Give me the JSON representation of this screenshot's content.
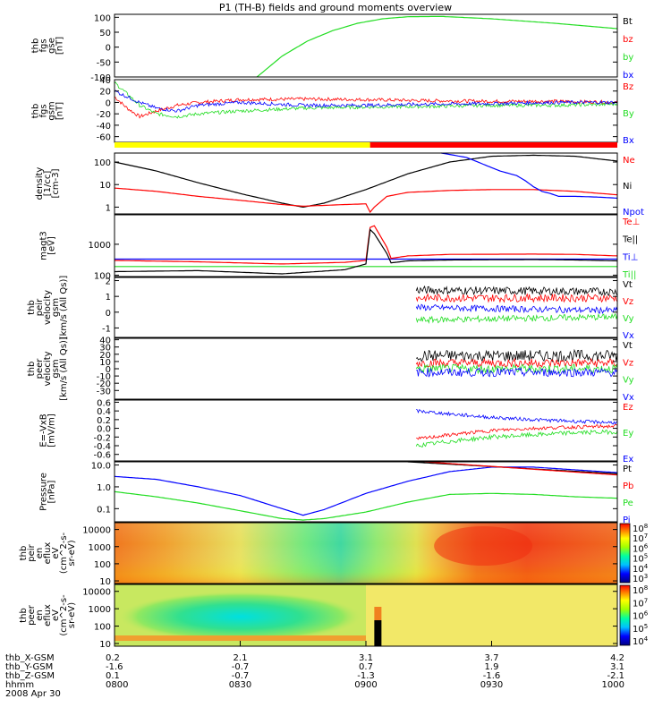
{
  "title": "P1 (TH-B) fields and ground moments overview",
  "date": "2008 Apr 30",
  "colors": {
    "black": "#000000",
    "red": "#ff0000",
    "green": "#22dd22",
    "blue": "#0000ff",
    "yellow": "#ffff00"
  },
  "x_axis": {
    "ticks": [
      0,
      30,
      60,
      90,
      120
    ],
    "rows": [
      {
        "label": "thb_X-GSM",
        "values": [
          "0.2",
          "2.1",
          "3.1",
          "3.7",
          "4.2"
        ]
      },
      {
        "label": "thb_Y-GSM",
        "values": [
          "-1.6",
          "-0.7",
          "0.7",
          "1.9",
          "3.1"
        ]
      },
      {
        "label": "thb_Z-GSM",
        "values": [
          "0.1",
          "-0.7",
          "-1.3",
          "-1.6",
          "-2.1"
        ]
      },
      {
        "label": "hhmm",
        "values": [
          "0800",
          "0830",
          "0900",
          "0930",
          "1000"
        ]
      }
    ]
  },
  "chart_data": [
    {
      "id": "fgs-gse",
      "type": "line",
      "ylabel": [
        "thb",
        "fgs",
        "gse",
        "[nT]"
      ],
      "ylim": [
        -100,
        110
      ],
      "yticks": [
        100,
        50,
        0,
        -50,
        -100
      ],
      "legend": [
        {
          "name": "Bt",
          "color": "black"
        },
        {
          "name": "bz",
          "color": "red"
        },
        {
          "name": "by",
          "color": "green"
        },
        {
          "name": "bx",
          "color": "blue"
        }
      ],
      "series": [
        {
          "name": "by",
          "color": "green",
          "x": [
            34,
            40,
            46,
            52,
            58,
            64,
            70,
            78,
            90,
            105,
            120
          ],
          "y": [
            -100,
            -30,
            20,
            55,
            80,
            95,
            102,
            103,
            95,
            80,
            62
          ]
        }
      ]
    },
    {
      "id": "fgs-gsm",
      "type": "line",
      "ylabel": [
        "thb",
        "fgs",
        "gsm",
        "[nT]"
      ],
      "ylim": [
        -70,
        40
      ],
      "yticks": [
        40,
        20,
        0,
        -20,
        -40,
        -60
      ],
      "legend": [
        {
          "name": "Bz",
          "color": "red"
        },
        {
          "name": "By",
          "color": "green"
        },
        {
          "name": "Bx",
          "color": "blue"
        }
      ],
      "series": [
        {
          "name": "Bz",
          "color": "red",
          "noise": 3,
          "x": [
            0,
            3,
            6,
            10,
            15,
            20,
            30,
            45,
            60,
            75,
            90,
            105,
            120
          ],
          "y": [
            10,
            -10,
            -25,
            -15,
            -5,
            0,
            5,
            6,
            5,
            3,
            2,
            2,
            0
          ]
        },
        {
          "name": "By",
          "color": "green",
          "noise": 3,
          "x": [
            0,
            3,
            6,
            10,
            15,
            20,
            30,
            45,
            60,
            75,
            90,
            105,
            120
          ],
          "y": [
            35,
            15,
            -5,
            -20,
            -25,
            -20,
            -15,
            -10,
            -8,
            -7,
            -5,
            -5,
            -3
          ]
        },
        {
          "name": "Bx",
          "color": "blue",
          "noise": 3,
          "x": [
            0,
            3,
            6,
            10,
            15,
            20,
            30,
            45,
            60,
            75,
            90,
            105,
            120
          ],
          "y": [
            20,
            10,
            0,
            -10,
            -15,
            -5,
            0,
            -5,
            -5,
            -3,
            -2,
            0,
            0
          ]
        }
      ]
    },
    {
      "id": "state-bar",
      "type": "bar",
      "segments": [
        {
          "x": [
            0,
            61
          ],
          "color": "yellow"
        },
        {
          "x": [
            61,
            120
          ],
          "color": "red"
        }
      ]
    },
    {
      "id": "density",
      "type": "line",
      "ylog": true,
      "ylabel": [
        "density",
        "[1/cc]",
        "[cm-3]"
      ],
      "ylim": [
        0.5,
        250
      ],
      "yticks": [
        100,
        10,
        1
      ],
      "yticklabels": [
        "100",
        "10",
        "1"
      ],
      "legend": [
        {
          "name": "Ne",
          "color": "red"
        },
        {
          "name": "Ni",
          "color": "black"
        },
        {
          "name": "Npot",
          "color": "blue"
        }
      ],
      "series": [
        {
          "name": "Ni",
          "color": "black",
          "x": [
            0,
            10,
            20,
            30,
            40,
            45,
            50,
            60,
            70,
            80,
            90,
            100,
            110,
            120
          ],
          "y": [
            100,
            40,
            12,
            4,
            1.5,
            1,
            1.5,
            6,
            30,
            100,
            180,
            200,
            180,
            110
          ]
        },
        {
          "name": "Ne",
          "color": "red",
          "x": [
            0,
            10,
            20,
            30,
            40,
            45,
            55,
            60,
            61,
            62,
            65,
            70,
            80,
            90,
            100,
            110,
            120
          ],
          "y": [
            7,
            5,
            3,
            2,
            1.3,
            1.1,
            1.3,
            1.4,
            0.6,
            1,
            3,
            4.5,
            5.5,
            6,
            6,
            5,
            3.5
          ]
        },
        {
          "name": "Npot",
          "color": "blue",
          "x": [
            78,
            84,
            88,
            92,
            96,
            98,
            100,
            102,
            104,
            106,
            110,
            115,
            120
          ],
          "y": [
            250,
            160,
            80,
            40,
            25,
            15,
            8,
            5,
            4,
            3,
            3,
            2.8,
            2.5
          ]
        }
      ]
    },
    {
      "id": "magt3",
      "type": "line",
      "ylog": true,
      "ylabel": [
        "magt3",
        "[eV]"
      ],
      "ylim": [
        90,
        9000
      ],
      "yticks": [
        1000,
        100
      ],
      "yticklabels": [
        "1000",
        "100"
      ],
      "legend": [
        {
          "name": "Te⊥",
          "color": "red"
        },
        {
          "name": "Te||",
          "color": "black"
        },
        {
          "name": "Ti⊥",
          "color": "blue"
        },
        {
          "name": "Ti||",
          "color": "green"
        }
      ],
      "series": [
        {
          "name": "Ti⊥",
          "color": "blue",
          "x": [
            0,
            60,
            120
          ],
          "y": [
            330,
            330,
            330
          ]
        },
        {
          "name": "Ti||",
          "color": "green",
          "x": [
            0,
            120
          ],
          "y": [
            190,
            190
          ]
        },
        {
          "name": "Te⊥",
          "color": "red",
          "x": [
            0,
            20,
            40,
            55,
            60,
            61,
            62,
            65,
            66,
            70,
            80,
            100,
            110,
            120
          ],
          "y": [
            300,
            270,
            230,
            260,
            300,
            3500,
            4000,
            800,
            350,
            420,
            470,
            480,
            470,
            420
          ]
        },
        {
          "name": "Te||",
          "color": "black",
          "x": [
            0,
            20,
            40,
            55,
            60,
            61,
            62,
            65,
            66,
            70,
            80,
            100,
            110,
            120
          ],
          "y": [
            130,
            140,
            110,
            150,
            230,
            3000,
            2200,
            500,
            250,
            290,
            310,
            320,
            310,
            290
          ]
        }
      ]
    },
    {
      "id": "peir-velocity",
      "type": "line",
      "ylabel": [
        "thb",
        "peir",
        "velocity",
        "gsm",
        "[km/s (All Qs)]"
      ],
      "ylim": [
        -1.6,
        2.2
      ],
      "yticks": [
        2,
        1,
        0,
        -1
      ],
      "legend": [
        {
          "name": "Vt",
          "color": "black"
        },
        {
          "name": "Vz",
          "color": "red"
        },
        {
          "name": "Vy",
          "color": "green"
        },
        {
          "name": "Vx",
          "color": "blue"
        }
      ],
      "series": [
        {
          "name": "Vt",
          "color": "black",
          "noise": 0.25,
          "x": [
            72,
            120
          ],
          "y": [
            1.4,
            1.3
          ]
        },
        {
          "name": "Vz",
          "color": "red",
          "noise": 0.25,
          "x": [
            72,
            120
          ],
          "y": [
            0.9,
            0.9
          ]
        },
        {
          "name": "Vx",
          "color": "blue",
          "noise": 0.2,
          "x": [
            72,
            120
          ],
          "y": [
            0.3,
            0.1
          ]
        },
        {
          "name": "Vy",
          "color": "green",
          "noise": 0.2,
          "x": [
            72,
            120
          ],
          "y": [
            -0.5,
            -0.3
          ]
        }
      ]
    },
    {
      "id": "peer-velocity",
      "type": "line",
      "ylabel": [
        "thb",
        "peer",
        "velocity",
        "gsm",
        "[km/s (All Qs)]"
      ],
      "ylim": [
        -42,
        42
      ],
      "yticks": [
        40,
        30,
        20,
        10,
        0,
        -10,
        -20,
        -30
      ],
      "legend": [
        {
          "name": "Vt",
          "color": "black"
        },
        {
          "name": "Vz",
          "color": "red"
        },
        {
          "name": "Vy",
          "color": "green"
        },
        {
          "name": "Vx",
          "color": "blue"
        }
      ],
      "series": [
        {
          "name": "Vt",
          "color": "black",
          "noise": 8,
          "x": [
            72,
            120
          ],
          "y": [
            18,
            18
          ]
        },
        {
          "name": "Vz",
          "color": "red",
          "noise": 6,
          "x": [
            72,
            120
          ],
          "y": [
            8,
            8
          ]
        },
        {
          "name": "Vy",
          "color": "green",
          "noise": 6,
          "x": [
            72,
            120
          ],
          "y": [
            0,
            0
          ]
        },
        {
          "name": "Vx",
          "color": "blue",
          "noise": 6,
          "x": [
            72,
            120
          ],
          "y": [
            -5,
            -5
          ]
        }
      ]
    },
    {
      "id": "e-field",
      "type": "line",
      "ylabel": [
        "E=-VxB",
        "[mV/m]"
      ],
      "ylim": [
        -0.75,
        0.65
      ],
      "yticks": [
        0.6,
        0.4,
        0.2,
        0.0,
        -0.2,
        -0.4,
        -0.6
      ],
      "yticklabels": [
        "0.6",
        "0.4",
        "0.2",
        "0.0",
        "-0.2",
        "-0.4",
        "-0.6"
      ],
      "legend": [
        {
          "name": "Ez",
          "color": "red"
        },
        {
          "name": "Ey",
          "color": "green"
        },
        {
          "name": "Ex",
          "color": "blue"
        }
      ],
      "series": [
        {
          "name": "Ex",
          "color": "blue",
          "noise": 0.04,
          "x": [
            72,
            80,
            90,
            100,
            110,
            120
          ],
          "y": [
            0.4,
            0.33,
            0.25,
            0.2,
            0.16,
            0.13
          ]
        },
        {
          "name": "Ez",
          "color": "red",
          "noise": 0.04,
          "x": [
            72,
            80,
            90,
            100,
            110,
            120
          ],
          "y": [
            -0.25,
            -0.15,
            -0.05,
            0.0,
            0.03,
            0.05
          ]
        },
        {
          "name": "Ey",
          "color": "green",
          "noise": 0.05,
          "x": [
            72,
            80,
            90,
            100,
            110,
            120
          ],
          "y": [
            -0.4,
            -0.3,
            -0.2,
            -0.15,
            -0.1,
            -0.08
          ]
        }
      ]
    },
    {
      "id": "pressure",
      "type": "line",
      "ylog": true,
      "ylabel": [
        "Pressure",
        "[nPa]"
      ],
      "ylim": [
        0.025,
        14
      ],
      "yticks": [
        10,
        1,
        0.1
      ],
      "yticklabels": [
        "10.0",
        "1.0",
        "0.1"
      ],
      "legend": [
        {
          "name": "Pt",
          "color": "black"
        },
        {
          "name": "Pb",
          "color": "red"
        },
        {
          "name": "Pe",
          "color": "green"
        },
        {
          "name": "Pi",
          "color": "blue"
        }
      ],
      "series": [
        {
          "name": "Pi",
          "color": "blue",
          "x": [
            0,
            10,
            20,
            30,
            40,
            45,
            50,
            60,
            70,
            80,
            90,
            100,
            110,
            120
          ],
          "y": [
            3,
            2.2,
            1,
            0.4,
            0.1,
            0.05,
            0.09,
            0.5,
            1.8,
            5,
            8,
            8,
            6,
            4.5
          ]
        },
        {
          "name": "Pe",
          "color": "green",
          "x": [
            0,
            10,
            20,
            30,
            40,
            45,
            50,
            60,
            70,
            80,
            90,
            100,
            110,
            120
          ],
          "y": [
            0.6,
            0.35,
            0.18,
            0.08,
            0.035,
            0.03,
            0.035,
            0.07,
            0.2,
            0.45,
            0.5,
            0.45,
            0.35,
            0.3
          ]
        },
        {
          "name": "Pt",
          "color": "black",
          "x": [
            70,
            120
          ],
          "y": [
            14,
            4
          ]
        },
        {
          "name": "Pb",
          "color": "red",
          "x": [
            74,
            120
          ],
          "y": [
            14,
            3.5
          ]
        }
      ]
    },
    {
      "id": "peir-en-eflux",
      "type": "heatmap",
      "ylabel": [
        "thb",
        "peir",
        "en",
        "eflux",
        "eV",
        "(cm^2-s-",
        "sr-eV)"
      ],
      "ylim": [
        7,
        25000
      ],
      "ylog": true,
      "yticks": [
        10000,
        1000,
        100,
        10
      ],
      "yticklabels": [
        "10000",
        "1000",
        "100",
        "10"
      ],
      "colorbar": {
        "ticks": [
          {
            "base": "10",
            "exp": "8"
          },
          {
            "base": "10",
            "exp": "7"
          },
          {
            "base": "10",
            "exp": "6"
          },
          {
            "base": "10",
            "exp": "5"
          },
          {
            "base": "10",
            "exp": "4"
          },
          {
            "base": "10",
            "exp": "3"
          }
        ]
      }
    },
    {
      "id": "peer-en-eflux",
      "type": "heatmap",
      "ylabel": [
        "thb",
        "peer",
        "en",
        "eflux",
        "eV",
        "(cm^2-s-",
        "sr-eV)"
      ],
      "ylim": [
        7,
        25000
      ],
      "ylog": true,
      "yticks": [
        10000,
        1000,
        100,
        10
      ],
      "yticklabels": [
        "10000",
        "1000",
        "100",
        "10"
      ],
      "colorbar": {
        "ticks": [
          {
            "base": "10",
            "exp": "8"
          },
          {
            "base": "10",
            "exp": "7"
          },
          {
            "base": "10",
            "exp": "6"
          },
          {
            "base": "10",
            "exp": "5"
          },
          {
            "base": "10",
            "exp": "4"
          }
        ]
      }
    }
  ]
}
